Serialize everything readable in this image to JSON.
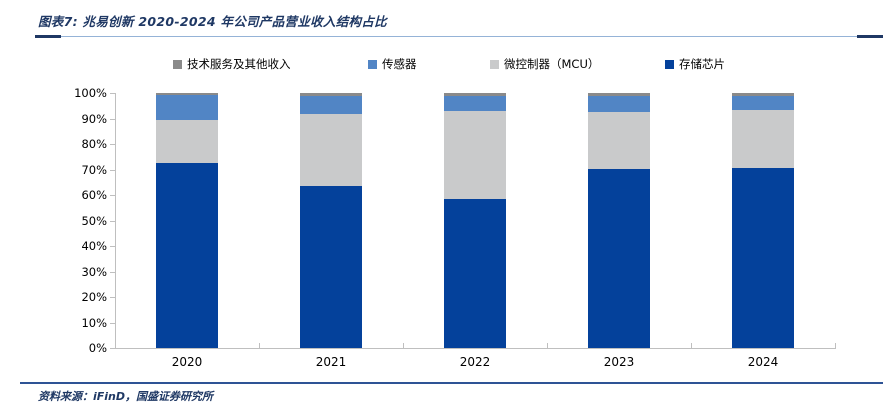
{
  "header": {
    "title": "图表7: 兆易创新 2020-2024 年公司产品营业收入结构占比"
  },
  "footer": {
    "source": "资料来源：iFinD，国盛证券研究所"
  },
  "colors": {
    "memory_dark_blue": "#04419b",
    "mcu_light_gray": "#c9cacb",
    "sensor_medium_blue": "#5185c5",
    "other_gray": "#8a8a8a",
    "title_navy": "#1f3864",
    "rule_light_blue": "#95b3d7",
    "footer_rule_blue": "#2e5395",
    "axis_gray": "#bfbfbf"
  },
  "chart_data": {
    "type": "bar",
    "stacked": true,
    "percent_stacked": true,
    "title": "兆易创新 2020-2024 年公司产品营业收入结构占比",
    "categories": [
      "2020",
      "2021",
      "2022",
      "2023",
      "2024"
    ],
    "series": [
      {
        "name": "存储芯片",
        "color": "#04419b",
        "values": [
          72.7,
          63.4,
          58.6,
          70.1,
          70.5
        ]
      },
      {
        "name": "微控制器（MCU）",
        "color": "#c9cacb",
        "values": [
          16.9,
          28.5,
          34.5,
          22.5,
          22.7
        ]
      },
      {
        "name": "传感器",
        "color": "#5185c5",
        "values": [
          9.8,
          7.1,
          5.6,
          6.1,
          5.8
        ]
      },
      {
        "name": "技术服务及其他收入",
        "color": "#8a8a8a",
        "values": [
          0.6,
          1.0,
          1.3,
          1.3,
          1.0
        ]
      }
    ],
    "legend": [
      {
        "label": "技术服务及其他收入",
        "color": "#8a8a8a"
      },
      {
        "label": "传感器",
        "color": "#5185c5"
      },
      {
        "label": "微控制器（MCU）",
        "color": "#c9cacb"
      },
      {
        "label": "存储芯片",
        "color": "#04419b"
      }
    ],
    "legend_position": "top",
    "grid": false,
    "ylim": [
      0,
      100
    ],
    "y_ticks": [
      "100%",
      "90%",
      "80%",
      "70%",
      "60%",
      "50%",
      "40%",
      "30%",
      "20%",
      "10%",
      "0%"
    ],
    "xlabel": "",
    "ylabel": ""
  }
}
